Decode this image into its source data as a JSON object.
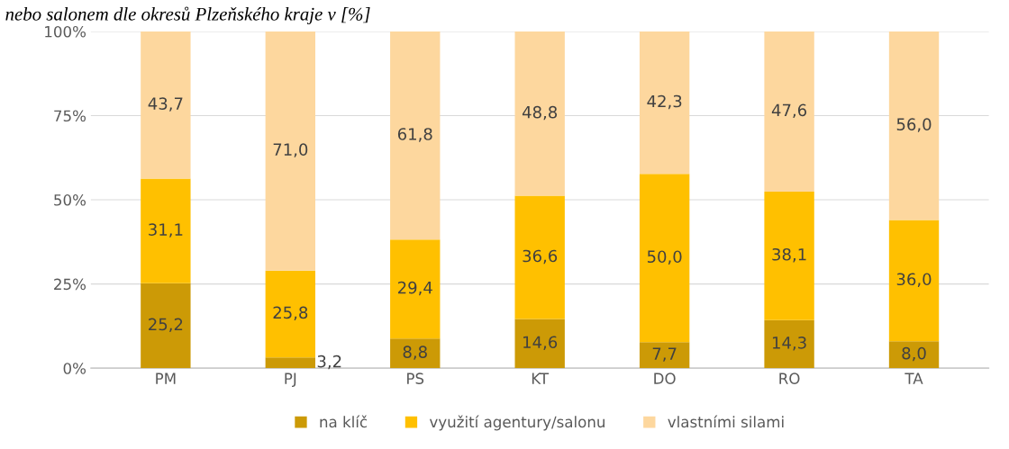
{
  "chart_data": {
    "type": "bar",
    "stacked": true,
    "title": "nebo salonem dle okresů Plzeňského kraje v [%]",
    "categories": [
      "PM",
      "PJ",
      "PS",
      "KT",
      "DO",
      "RO",
      "TA"
    ],
    "series": [
      {
        "name": "na klíč",
        "color": "#cc9a06",
        "values": [
          25.2,
          3.2,
          8.8,
          14.6,
          7.7,
          14.3,
          8.0
        ],
        "value_labels": [
          "25,2",
          "3,2",
          "8,8",
          "14,6",
          "7,7",
          "14,3",
          "8,0"
        ]
      },
      {
        "name": "využití agentury/salonu",
        "color": "#ffc000",
        "values": [
          31.1,
          25.8,
          29.4,
          36.6,
          50.0,
          38.1,
          36.0
        ],
        "value_labels": [
          "31,1",
          "25,8",
          "29,4",
          "36,6",
          "50,0",
          "38,1",
          "36,0"
        ]
      },
      {
        "name": "vlastními silami",
        "color": "#fdd79e",
        "values": [
          43.7,
          71.0,
          61.8,
          48.8,
          42.3,
          47.6,
          56.0
        ],
        "value_labels": [
          "43,7",
          "71,0",
          "61,8",
          "48,8",
          "42,3",
          "47,6",
          "56,0"
        ]
      }
    ],
    "ylim": [
      0,
      100
    ],
    "yticks": [
      {
        "value": 0,
        "label": "0%"
      },
      {
        "value": 25,
        "label": "25%"
      },
      {
        "value": 50,
        "label": "50%"
      },
      {
        "value": 75,
        "label": "75%"
      },
      {
        "value": 100,
        "label": "100%"
      }
    ],
    "grid": "y",
    "legend": "bottom"
  }
}
